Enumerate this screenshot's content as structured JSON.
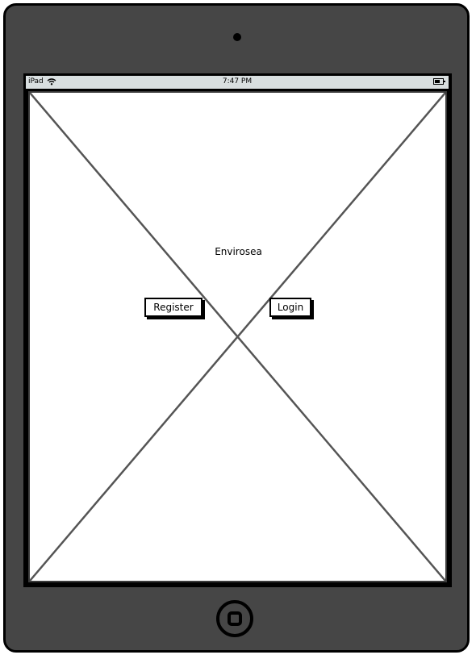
{
  "device": {
    "model_label": "iPad",
    "colors": {
      "bezel": "#464646",
      "status_bar": "#d9dfe0",
      "screen": "#ffffff"
    }
  },
  "status_bar": {
    "device_label": "iPad",
    "time": "7:47 PM",
    "wifi_icon": "wifi-icon",
    "battery_icon": "battery-icon"
  },
  "screen": {
    "app_title": "Envirosea",
    "register_label": "Register",
    "login_label": "Login",
    "background_icon": "image-placeholder-icon"
  },
  "hardware": {
    "home_icon": "home-button-icon",
    "camera_icon": "camera-icon"
  }
}
